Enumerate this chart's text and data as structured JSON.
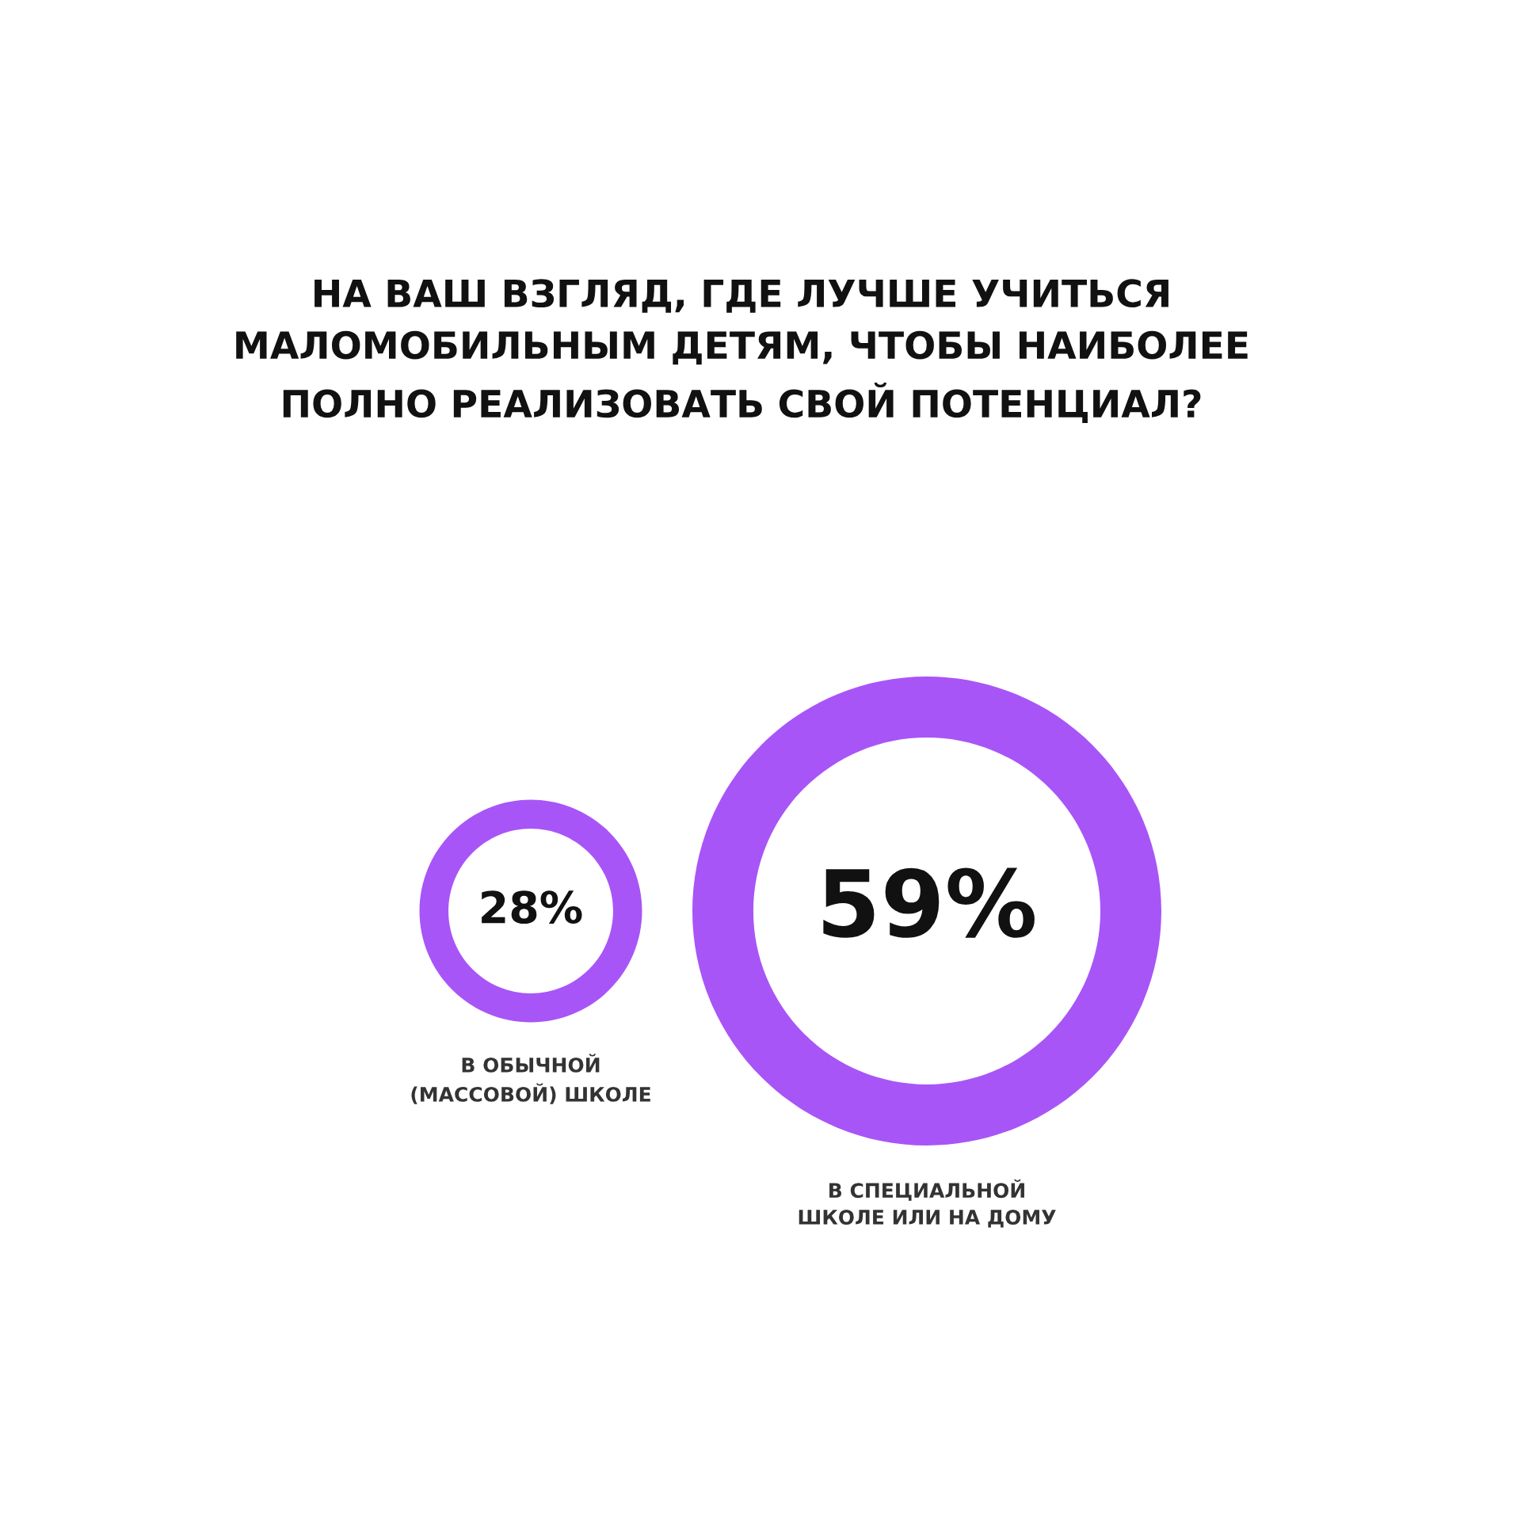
{
  "chart_data": {
    "type": "other",
    "title": "НА ВАШ ВЗГЛЯД, ГДЕ ЛУЧШЕ УЧИТЬСЯ\nМАЛОМОБИЛЬНЫМ ДЕТЯМ, ЧТОБЫ НАИБОЛЕЕ\nПОЛНО РЕАЛИЗОВАТЬ СВОЙ ПОТЕНЦИАЛ?",
    "categories": [
      "В ОБЫЧНОЙ\n(МАССОВОЙ) ШКОЛЕ",
      "В СПЕЦИАЛЬНОЙ\nШКОЛЕ ИЛИ НА ДОМУ"
    ],
    "values": [
      28,
      59
    ],
    "value_labels": [
      "28%",
      "59%"
    ],
    "colors": [
      "#a855f7",
      "#a855f7"
    ]
  }
}
